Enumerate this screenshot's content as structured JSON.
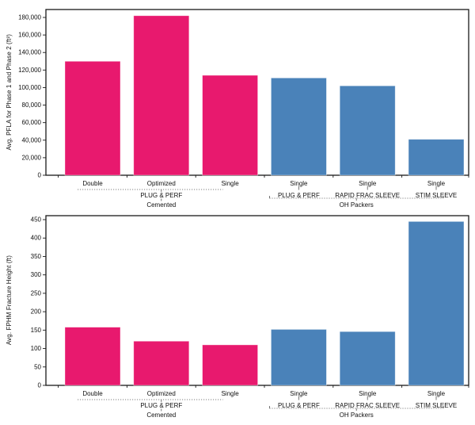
{
  "page": {
    "background": "#ffffff"
  },
  "colors": {
    "pink": "#E8196E",
    "blue": "#4A82B9",
    "axis": "#1a1a1a",
    "grouping_line": "#555555"
  },
  "chart_data": [
    {
      "type": "bar",
      "title": "",
      "ylabel": "Avg. PFLA for Phase 1 and Phase 2 (ft²)",
      "xlabel": "",
      "ylim": [
        0,
        180000
      ],
      "ytick_interval": 20000,
      "ytick_labels": [
        "0",
        "20,000",
        "40,000",
        "60,000",
        "80,000",
        "100,000",
        "120,000",
        "140,000",
        "160,000",
        "180,000"
      ],
      "categories": [
        "Double",
        "Optimized",
        "Single",
        "Single",
        "Single",
        "Single"
      ],
      "values": [
        130000,
        182000,
        114000,
        111000,
        102000,
        41000
      ],
      "bar_colors": [
        "pink",
        "pink",
        "pink",
        "blue",
        "blue",
        "blue"
      ],
      "grid": false,
      "legend": null,
      "xaxis_hierarchy": {
        "system_row": [
          {
            "label": "PLUG & PERF",
            "start": 0,
            "end": 2,
            "spanline": true
          },
          {
            "label": "PLUG & PERF",
            "start": 3,
            "end": 3,
            "spanline": false
          },
          {
            "label": "RAPID FRAC SLEEVE",
            "start": 4,
            "end": 4,
            "spanline": false
          },
          {
            "label": "STIM SLEEVE",
            "start": 5,
            "end": 5,
            "spanline": false
          }
        ],
        "completion_row": [
          {
            "label": "Cemented",
            "start": 0,
            "end": 2,
            "bracket": false
          },
          {
            "label": "OH Packers",
            "start": 3,
            "end": 5,
            "bracket": true
          }
        ]
      }
    },
    {
      "type": "bar",
      "title": "",
      "ylabel": "Avg. FPHM Fracture Height (ft)",
      "xlabel": "",
      "ylim": [
        0,
        450
      ],
      "ytick_interval": 50,
      "ytick_labels": [
        "0",
        "50",
        "100",
        "150",
        "200",
        "250",
        "300",
        "350",
        "400",
        "450"
      ],
      "categories": [
        "Double",
        "Optimized",
        "Single",
        "Single",
        "Single",
        "Single"
      ],
      "values": [
        158,
        120,
        110,
        152,
        146,
        445
      ],
      "bar_colors": [
        "pink",
        "pink",
        "pink",
        "blue",
        "blue",
        "blue"
      ],
      "grid": false,
      "legend": null,
      "xaxis_hierarchy": {
        "system_row": [
          {
            "label": "PLUG & PERF",
            "start": 0,
            "end": 2,
            "spanline": true
          },
          {
            "label": "PLUG & PERF",
            "start": 3,
            "end": 3,
            "spanline": false
          },
          {
            "label": "RAPID FRAC SLEEVE",
            "start": 4,
            "end": 4,
            "spanline": false
          },
          {
            "label": "STIM SLEEVE",
            "start": 5,
            "end": 5,
            "spanline": false
          }
        ],
        "completion_row": [
          {
            "label": "Cemented",
            "start": 0,
            "end": 2,
            "bracket": false
          },
          {
            "label": "OH Packers",
            "start": 3,
            "end": 5,
            "bracket": true
          }
        ]
      }
    }
  ]
}
